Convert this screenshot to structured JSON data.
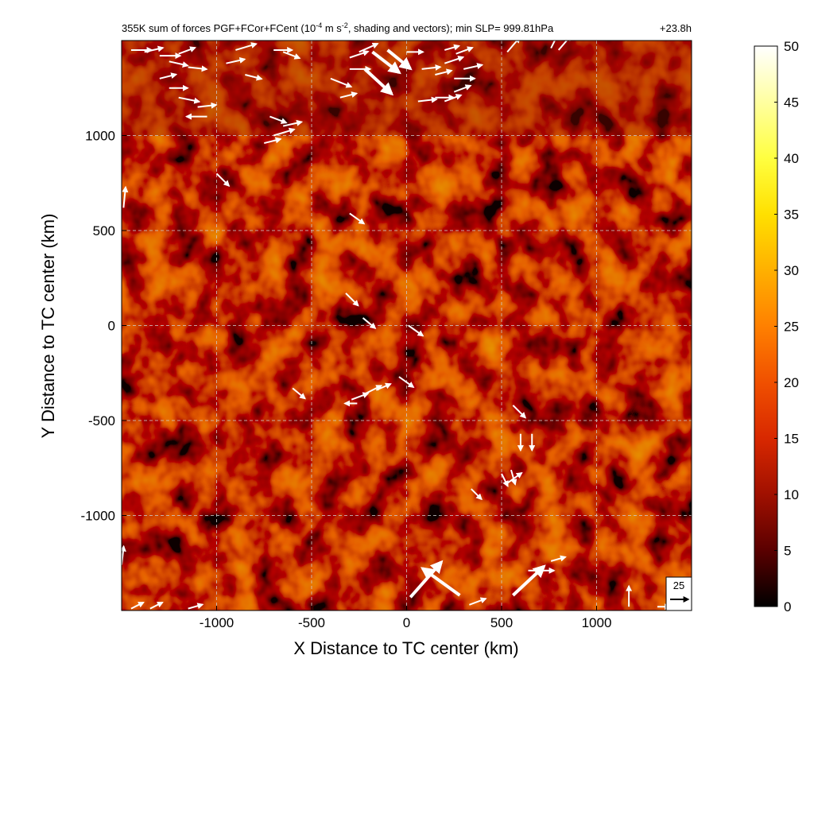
{
  "chart_data": {
    "type": "heatmap",
    "title": "355K sum of forces PGF+FCor+FCent (10",
    "title_sup": "-4",
    "title_mid": " m s",
    "title_sup2": "-2",
    "title_end": ", shading and vectors); min SLP= 999.81hPa",
    "time_label": "+23.8h",
    "xlabel": "X Distance to TC center (km)",
    "ylabel": "Y Distance to TC center (km)",
    "xlim": [
      -1500,
      1500
    ],
    "ylim": [
      -1500,
      1500
    ],
    "xticks": [
      -1000,
      -500,
      0,
      500,
      1000
    ],
    "yticks": [
      -1000,
      -500,
      0,
      500,
      1000
    ],
    "grid": true,
    "colorbar": {
      "range": [
        0,
        50
      ],
      "ticks": [
        0,
        5,
        10,
        15,
        20,
        25,
        30,
        35,
        40,
        45,
        50
      ],
      "colors": [
        "#000000",
        "#5a0000",
        "#a01000",
        "#d82800",
        "#f05000",
        "#ff8000",
        "#ffb000",
        "#ffe000",
        "#ffff40",
        "#ffffa0",
        "#ffffff"
      ]
    },
    "reference_vector": {
      "label": "25",
      "value": 25
    },
    "vectors": [
      {
        "x": -1450,
        "y": 1450,
        "u": 10,
        "v": 0
      },
      {
        "x": -1380,
        "y": 1440,
        "u": 9,
        "v": 2
      },
      {
        "x": -1300,
        "y": 1420,
        "u": 10,
        "v": 0
      },
      {
        "x": -1250,
        "y": 1390,
        "u": 9,
        "v": -2
      },
      {
        "x": -1200,
        "y": 1430,
        "u": 8,
        "v": 3
      },
      {
        "x": -1150,
        "y": 1360,
        "u": 9,
        "v": -1
      },
      {
        "x": -1300,
        "y": 1300,
        "u": 8,
        "v": 2
      },
      {
        "x": -1250,
        "y": 1250,
        "u": 9,
        "v": 0
      },
      {
        "x": -1200,
        "y": 1200,
        "u": 10,
        "v": -2
      },
      {
        "x": -1100,
        "y": 1150,
        "u": 9,
        "v": 1
      },
      {
        "x": -1050,
        "y": 1100,
        "u": -10,
        "v": 0
      },
      {
        "x": -950,
        "y": 1380,
        "u": 9,
        "v": 2
      },
      {
        "x": -900,
        "y": 1450,
        "u": 10,
        "v": 3
      },
      {
        "x": -850,
        "y": 1320,
        "u": 8,
        "v": -2
      },
      {
        "x": -700,
        "y": 1450,
        "u": 9,
        "v": 0
      },
      {
        "x": -650,
        "y": 1440,
        "u": 8,
        "v": -3
      },
      {
        "x": -720,
        "y": 1100,
        "u": 8,
        "v": -3
      },
      {
        "x": -650,
        "y": 1050,
        "u": 9,
        "v": 2
      },
      {
        "x": -700,
        "y": 1000,
        "u": 10,
        "v": 3
      },
      {
        "x": -750,
        "y": 960,
        "u": 8,
        "v": 2
      },
      {
        "x": -400,
        "y": 1300,
        "u": 10,
        "v": -4
      },
      {
        "x": -300,
        "y": 1410,
        "u": 9,
        "v": 3
      },
      {
        "x": -250,
        "y": 1440,
        "u": 9,
        "v": 4
      },
      {
        "x": -350,
        "y": 1200,
        "u": 8,
        "v": 2
      },
      {
        "x": -300,
        "y": 1350,
        "u": 10,
        "v": 0
      },
      {
        "x": -220,
        "y": 1350,
        "u": 13,
        "v": -12
      },
      {
        "x": -180,
        "y": 1440,
        "u": 13,
        "v": -10
      },
      {
        "x": -100,
        "y": 1450,
        "u": 11,
        "v": -9
      },
      {
        "x": 0,
        "y": 1440,
        "u": 8,
        "v": 0
      },
      {
        "x": 80,
        "y": 1350,
        "u": 9,
        "v": 1
      },
      {
        "x": 150,
        "y": 1320,
        "u": 8,
        "v": 2
      },
      {
        "x": 200,
        "y": 1380,
        "u": 9,
        "v": 3
      },
      {
        "x": 250,
        "y": 1300,
        "u": 10,
        "v": 0
      },
      {
        "x": 300,
        "y": 1350,
        "u": 9,
        "v": 2
      },
      {
        "x": 250,
        "y": 1230,
        "u": 8,
        "v": 3
      },
      {
        "x": 150,
        "y": 1200,
        "u": 9,
        "v": 0
      },
      {
        "x": 260,
        "y": 1430,
        "u": 8,
        "v": 3
      },
      {
        "x": 200,
        "y": 1450,
        "u": 7,
        "v": 2
      },
      {
        "x": 200,
        "y": 1180,
        "u": 8,
        "v": 3
      },
      {
        "x": 60,
        "y": 1180,
        "u": 9,
        "v": 1
      },
      {
        "x": 530,
        "y": 1440,
        "u": 6,
        "v": 7
      },
      {
        "x": 760,
        "y": 1460,
        "u": 4,
        "v": 8
      },
      {
        "x": 800,
        "y": 1450,
        "u": 6,
        "v": 7
      },
      {
        "x": -1000,
        "y": 800,
        "u": 6,
        "v": -6
      },
      {
        "x": -300,
        "y": 590,
        "u": 7,
        "v": -5
      },
      {
        "x": -320,
        "y": 170,
        "u": 6,
        "v": -6
      },
      {
        "x": -230,
        "y": 40,
        "u": 6,
        "v": -5
      },
      {
        "x": 10,
        "y": 0,
        "u": 7,
        "v": -5
      },
      {
        "x": -40,
        "y": -270,
        "u": 7,
        "v": -5
      },
      {
        "x": -600,
        "y": -330,
        "u": 6,
        "v": -5
      },
      {
        "x": -290,
        "y": -390,
        "u": 8,
        "v": 3
      },
      {
        "x": -220,
        "y": -360,
        "u": 8,
        "v": 4
      },
      {
        "x": -160,
        "y": -340,
        "u": 7,
        "v": 3
      },
      {
        "x": -260,
        "y": -410,
        "u": -6,
        "v": 0
      },
      {
        "x": 560,
        "y": -420,
        "u": 6,
        "v": -6
      },
      {
        "x": 600,
        "y": -570,
        "u": 0,
        "v": -8
      },
      {
        "x": 660,
        "y": -570,
        "u": 0,
        "v": -8
      },
      {
        "x": 500,
        "y": -780,
        "u": 3,
        "v": -6
      },
      {
        "x": 550,
        "y": -760,
        "u": 2,
        "v": -7
      },
      {
        "x": 530,
        "y": -830,
        "u": 7,
        "v": 5
      },
      {
        "x": 340,
        "y": -860,
        "u": 5,
        "v": -5
      },
      {
        "x": 640,
        "y": -1290,
        "u": 7,
        "v": 0
      },
      {
        "x": 700,
        "y": -1290,
        "u": 7,
        "v": 0
      },
      {
        "x": 760,
        "y": -1240,
        "u": 7,
        "v": 2
      },
      {
        "x": 20,
        "y": -1430,
        "u": 15,
        "v": 17
      },
      {
        "x": 280,
        "y": -1420,
        "u": -18,
        "v": 13
      },
      {
        "x": 560,
        "y": -1420,
        "u": 15,
        "v": 14
      },
      {
        "x": 330,
        "y": -1470,
        "u": 8,
        "v": 3
      },
      {
        "x": 1170,
        "y": -1480,
        "u": 0,
        "v": 10
      },
      {
        "x": 1320,
        "y": -1480,
        "u": 6,
        "v": 0
      },
      {
        "x": -1500,
        "y": -1260,
        "u": 1,
        "v": 9
      },
      {
        "x": -1490,
        "y": 620,
        "u": 1,
        "v": 10
      },
      {
        "x": -1450,
        "y": -1490,
        "u": 6,
        "v": 3
      },
      {
        "x": -1350,
        "y": -1490,
        "u": 6,
        "v": 3
      },
      {
        "x": -1150,
        "y": -1490,
        "u": 7,
        "v": 2
      }
    ]
  }
}
